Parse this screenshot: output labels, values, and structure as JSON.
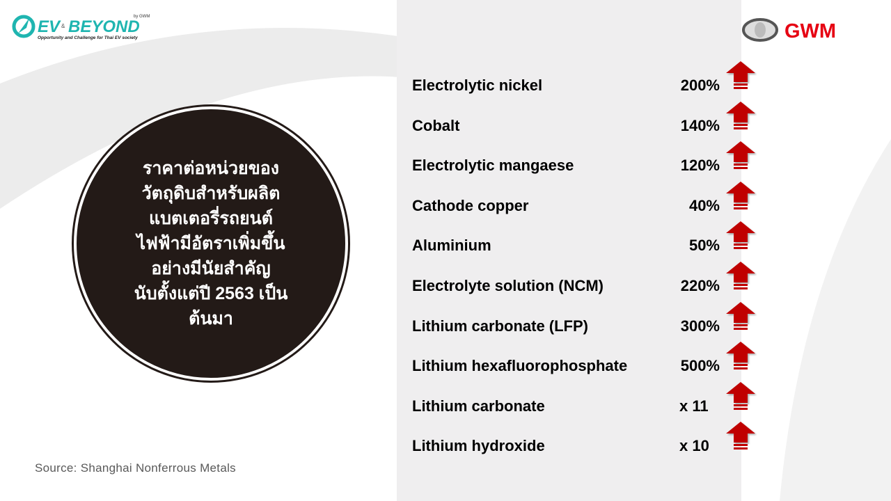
{
  "header": {
    "left_logo": {
      "text": "EV & BEYOND",
      "byline": "by GWM",
      "tagline": "Opportunity and Challenge for Thai EV society"
    },
    "right_logo": {
      "text": "GWM"
    }
  },
  "callout": {
    "lines": [
      "ราคาต่อหน่วยของ",
      "วัตถุดิบสำหรับผลิต",
      "แบตเตอรี่รถยนต์",
      "ไฟฟ้ามีอัตราเพิ่มขึ้น",
      "อย่างมีนัยสำคัญ",
      "นับตั้งแต่ปี 2563 เป็น",
      "ต้นมา"
    ]
  },
  "source": "Source: Shanghai Nonferrous  Metals",
  "materials": [
    {
      "name": "Electrolytic nickel",
      "increase": "200%",
      "icon": "up-arrow-icon"
    },
    {
      "name": "Cobalt",
      "increase": "140%",
      "icon": "up-arrow-icon"
    },
    {
      "name": "Electrolytic mangaese",
      "increase": "120%",
      "icon": "up-arrow-icon"
    },
    {
      "name": "Cathode copper",
      "increase": "40%",
      "icon": "up-arrow-icon"
    },
    {
      "name": "Aluminium",
      "increase": "50%",
      "icon": "up-arrow-icon"
    },
    {
      "name": "Electrolyte solution (NCM)",
      "increase": "220%",
      "icon": "up-arrow-icon"
    },
    {
      "name": "Lithium carbonate (LFP)",
      "increase": "300%",
      "icon": "up-arrow-icon"
    },
    {
      "name": "Lithium hexafluorophosphate",
      "increase": "500%",
      "icon": "up-arrow-icon"
    },
    {
      "name": "Lithium carbonate",
      "increase": "x 11",
      "icon": "up-arrow-icon"
    },
    {
      "name": "Lithium hydroxide",
      "increase": "x 10",
      "icon": "up-arrow-icon"
    }
  ],
  "colors": {
    "arrow": "#c00000",
    "circle": "#231a17",
    "brand_red": "#e60012",
    "ev_teal": "#1fb5b0"
  }
}
